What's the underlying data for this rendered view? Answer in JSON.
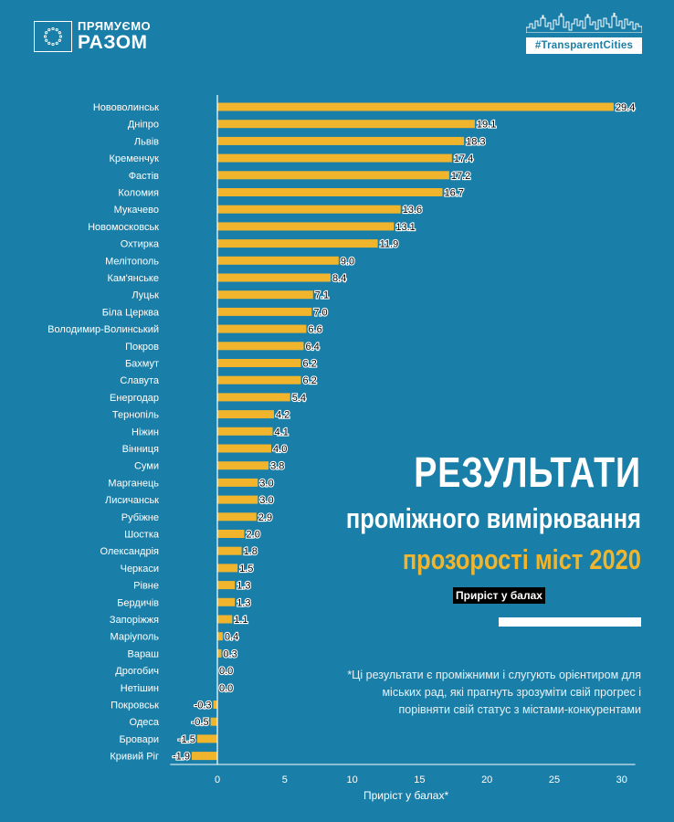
{
  "brand": {
    "left_top": "ПРЯМУЄМО",
    "left_bottom": "РАЗОМ",
    "right_badge": "#TransparentCities"
  },
  "title": {
    "line1": "РЕЗУЛЬТАТИ",
    "line2": "проміжного вимірювання",
    "line3": "прозорості міст 2020"
  },
  "legend_label": "Приріст у балах",
  "footnote": "*Ці результати є проміжними і слугують орієнтиром для міських рад, які прагнуть зрозуміти свій прогрес і порівняти свій статус з містами-конкурентами",
  "colors": {
    "background": "#1a7fa8",
    "bar": "#f0b52c",
    "accent_title": "#f0b52c"
  },
  "chart_data": {
    "type": "bar",
    "orientation": "horizontal",
    "categories": [
      "Нововолинськ",
      "Дніпро",
      "Львів",
      "Кременчук",
      "Фастів",
      "Коломия",
      "Мукачево",
      "Новомосковськ",
      "Охтирка",
      "Мелітополь",
      "Кам'янське",
      "Луцьк",
      "Біла Церква",
      "Володимир-Волинський",
      "Покров",
      "Бахмут",
      "Славута",
      "Енергодар",
      "Тернопіль",
      "Ніжин",
      "Вінниця",
      "Суми",
      "Марганець",
      "Лисичанськ",
      "Рубіжне",
      "Шостка",
      "Олександрія",
      "Черкаси",
      "Рівне",
      "Бердичів",
      "Запоріжжя",
      "Маріуполь",
      "Вараш",
      "Дрогобич",
      "Нетішин",
      "Покровськ",
      "Одеса",
      "Бровари",
      "Кривий Ріг"
    ],
    "values": [
      29.4,
      19.1,
      18.3,
      17.4,
      17.2,
      16.7,
      13.6,
      13.1,
      11.9,
      9.0,
      8.4,
      7.1,
      7.0,
      6.6,
      6.4,
      6.2,
      6.2,
      5.4,
      4.2,
      4.1,
      4.0,
      3.8,
      3.0,
      3.0,
      2.9,
      2.0,
      1.8,
      1.5,
      1.3,
      1.3,
      1.1,
      0.4,
      0.3,
      0.0,
      0.0,
      -0.3,
      -0.5,
      -1.5,
      -1.9
    ],
    "value_labels": [
      "29.4",
      "19.1",
      "18.3",
      "17.4",
      "17.2",
      "16.7",
      "13.6",
      "13.1",
      "11.9",
      "9.0",
      "8.4",
      "7.1",
      "7.0",
      "6.6",
      "6.4",
      "6.2",
      "6.2",
      "5.4",
      "4.2",
      "4.1",
      "4.0",
      "3.8",
      "3.0",
      "3.0",
      "2.9",
      "2.0",
      "1.8",
      "1.5",
      "1.3",
      "1.3",
      "1.1",
      "0.4",
      "0.3",
      "0.0",
      "0.0",
      "-0.3",
      "-0.5",
      "-1.5",
      "-1.9"
    ],
    "xlabel": "Приріст у балах*",
    "xlim": [
      -3.5,
      31
    ],
    "xticks": [
      0,
      5,
      10,
      15,
      20,
      25,
      30
    ],
    "grid": false
  }
}
